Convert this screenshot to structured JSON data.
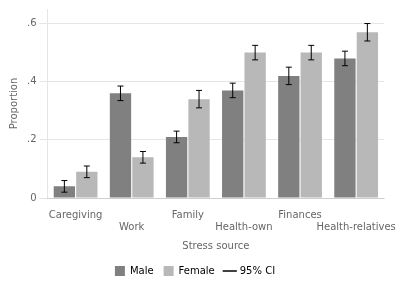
{
  "chart_data": {
    "type": "bar",
    "categories": [
      "Caregiving",
      "Work",
      "Family",
      "Health-own",
      "Finances",
      "Health-relatives"
    ],
    "series": [
      {
        "name": "Male",
        "color": "#808080",
        "values": [
          0.04,
          0.36,
          0.21,
          0.37,
          0.42,
          0.48
        ],
        "ci": [
          0.02,
          0.025,
          0.02,
          0.025,
          0.03,
          0.025
        ]
      },
      {
        "name": "Female",
        "color": "#b8b8b8",
        "values": [
          0.09,
          0.14,
          0.34,
          0.5,
          0.5,
          0.57
        ],
        "ci": [
          0.02,
          0.02,
          0.03,
          0.025,
          0.025,
          0.03
        ]
      }
    ],
    "error_label": "95% CI",
    "xlabel": "Stress source",
    "ylabel": "Proportion",
    "ylim": [
      0,
      0.65
    ],
    "yticks": [
      0,
      {
        "value": 0.2,
        "label": ".2"
      },
      {
        "value": 0.4,
        "label": ".4"
      },
      {
        "value": 0.6,
        "label": ".6"
      }
    ],
    "grid": true,
    "legend": "bottom"
  }
}
